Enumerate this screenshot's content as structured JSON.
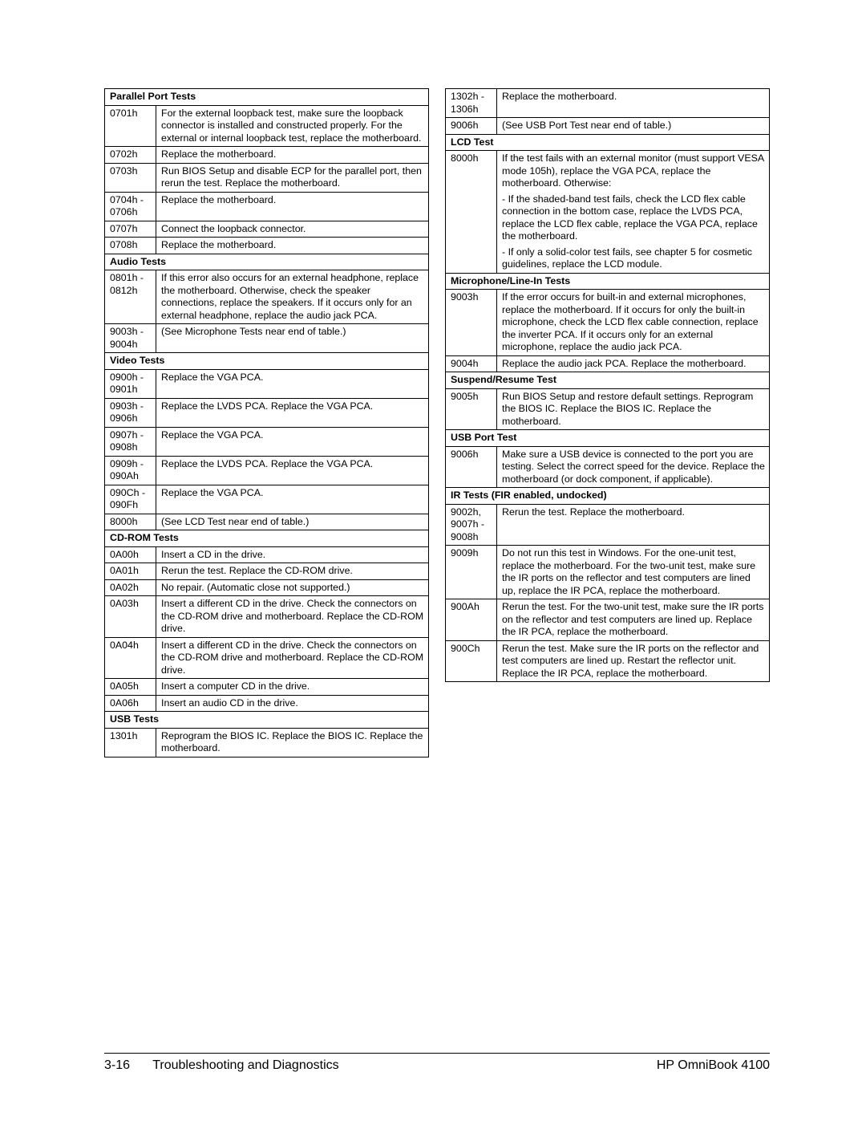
{
  "footer": {
    "page": "3-16",
    "section": "Troubleshooting and Diagnostics",
    "product": "HP OmniBook 4100"
  },
  "left": [
    {
      "type": "header",
      "text": "Parallel Port Tests"
    },
    {
      "code": "0701h",
      "desc": "For the external loopback test, make sure the loopback connector is installed and constructed properly. For the external or internal loopback test, replace the motherboard."
    },
    {
      "code": "0702h",
      "desc": "Replace the motherboard."
    },
    {
      "code": "0703h",
      "desc": "Run BIOS Setup and disable ECP for the parallel port, then rerun the test. Replace the motherboard."
    },
    {
      "code": "0704h - 0706h",
      "desc": "Replace the motherboard."
    },
    {
      "code": "0707h",
      "desc": "Connect the loopback connector."
    },
    {
      "code": "0708h",
      "desc": "Replace the motherboard."
    },
    {
      "type": "header",
      "text": "Audio Tests"
    },
    {
      "code": "0801h - 0812h",
      "desc": "If this error also occurs for an external headphone, replace the motherboard. Otherwise, check the speaker connections, replace the speakers. If it occurs only for an external headphone, replace the audio jack PCA."
    },
    {
      "code": "9003h - 9004h",
      "desc": "(See Microphone Tests near end of table.)"
    },
    {
      "type": "header",
      "text": "Video Tests"
    },
    {
      "code": "0900h - 0901h",
      "desc": "Replace the VGA PCA."
    },
    {
      "code": "0903h - 0906h",
      "desc": "Replace the LVDS PCA. Replace the VGA PCA."
    },
    {
      "code": "0907h - 0908h",
      "desc": "Replace the VGA PCA."
    },
    {
      "code": "0909h - 090Ah",
      "desc": "Replace the LVDS PCA. Replace the VGA PCA."
    },
    {
      "code": "090Ch - 090Fh",
      "desc": "Replace the VGA PCA."
    },
    {
      "code": "8000h",
      "desc": "(See LCD Test near end of table.)"
    },
    {
      "type": "header",
      "text": "CD-ROM Tests"
    },
    {
      "code": "0A00h",
      "desc": "Insert a CD in the drive."
    },
    {
      "code": "0A01h",
      "desc": "Rerun the test. Replace the CD-ROM drive."
    },
    {
      "code": "0A02h",
      "desc": "No repair. (Automatic close not supported.)"
    },
    {
      "code": "0A03h",
      "desc": "Insert a different CD in the drive. Check the connectors on the CD-ROM drive and motherboard. Replace the CD-ROM drive."
    },
    {
      "code": "0A04h",
      "desc": "Insert a different CD in the drive. Check the connectors on the CD-ROM drive and motherboard. Replace the CD-ROM drive."
    },
    {
      "code": "0A05h",
      "desc": "Insert a computer CD in the drive."
    },
    {
      "code": "0A06h",
      "desc": "Insert an audio CD in the drive."
    },
    {
      "type": "header",
      "text": "USB Tests"
    },
    {
      "code": "1301h",
      "desc": "Reprogram the BIOS IC. Replace the BIOS IC. Replace the motherboard."
    }
  ],
  "right": [
    {
      "code": "1302h - 1306h",
      "desc": "Replace the motherboard."
    },
    {
      "code": "9006h",
      "desc": "(See USB Port Test near end of table.)"
    },
    {
      "type": "header",
      "text": "LCD Test"
    },
    {
      "code": "8000h",
      "desc": "If the test fails with an external monitor (must support VESA mode 105h), replace the VGA PCA, replace the motherboard. Otherwise:\n- If the shaded-band test fails, check the LCD flex cable connection in the bottom case, replace the LVDS PCA, replace the LCD flex cable, replace the VGA PCA, replace the motherboard.\n- If only a solid-color test fails, see chapter 5 for cosmetic guidelines, replace the LCD module."
    },
    {
      "type": "header",
      "text": "Microphone/Line-In Tests"
    },
    {
      "code": "9003h",
      "desc": "If the error occurs for built-in and external microphones, replace the motherboard. If it occurs for only the built-in microphone, check the LCD flex cable connection, replace the inverter PCA. If it occurs only for an external microphone, replace the audio jack PCA."
    },
    {
      "code": "9004h",
      "desc": "Replace the audio jack PCA. Replace the motherboard."
    },
    {
      "type": "header",
      "text": "Suspend/Resume Test"
    },
    {
      "code": "9005h",
      "desc": "Run BIOS Setup and restore default settings. Reprogram the BIOS IC. Replace the BIOS IC. Replace the motherboard."
    },
    {
      "type": "header",
      "text": "USB Port Test"
    },
    {
      "code": "9006h",
      "desc": "Make sure a USB device is connected to the port you are testing. Select the correct speed for the device. Replace the motherboard (or dock component, if applicable)."
    },
    {
      "type": "header",
      "text": "IR Tests (FIR enabled, undocked)"
    },
    {
      "code": "9002h, 9007h - 9008h",
      "desc": "Rerun the test. Replace the motherboard."
    },
    {
      "code": "9009h",
      "desc": "Do not run this test in Windows. For the one-unit test, replace the motherboard. For the two-unit test, make sure the IR ports on the reflector and test computers are lined up, replace the IR PCA, replace the motherboard."
    },
    {
      "code": "900Ah",
      "desc": "Rerun the test. For the two-unit test, make sure the IR ports on the reflector and test computers are lined up. Replace the IR PCA, replace the motherboard."
    },
    {
      "code": "900Ch",
      "desc": "Rerun the test. Make sure the IR ports on the reflector and test computers are lined up. Restart the reflector unit. Replace the IR PCA, replace the motherboard."
    }
  ]
}
